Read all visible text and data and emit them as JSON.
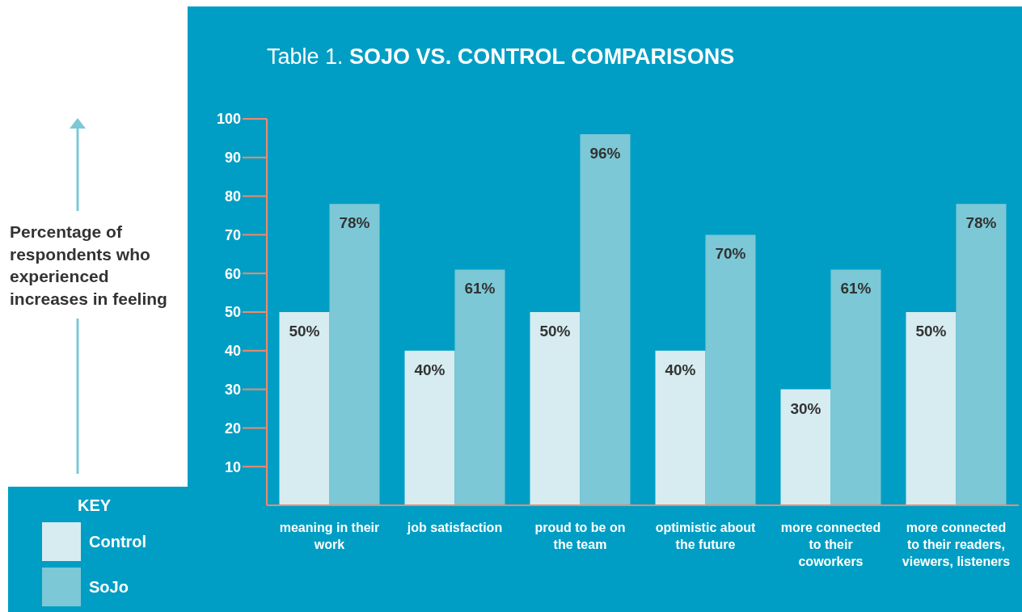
{
  "chart_data": {
    "type": "bar",
    "title": "Table 1. SOJO VS. CONTROL COMPARISONS",
    "annotations": [
      "Percentage of respondents who experienced increases in feeling"
    ],
    "legend_title": "KEY",
    "legend": "bottom left",
    "categories": [
      "meaning in their work",
      "job satisfaction",
      "proud to be on the team",
      "optimistic about the future",
      "more connected to their coworkers",
      "more connected to their readers, viewers, listeners"
    ],
    "series": [
      {
        "name": "Control",
        "color": "#d6ecf0",
        "values": [
          50,
          40,
          50,
          40,
          30,
          50
        ],
        "value_labels": [
          "50%",
          "40%",
          "50%",
          "40%",
          "30%",
          "50%"
        ]
      },
      {
        "name": "SoJo",
        "color": "#7cc8d6",
        "values": [
          78,
          61,
          96,
          70,
          61,
          78
        ],
        "value_labels": [
          "78%",
          "61%",
          "96%",
          "70%",
          "61%",
          "78%"
        ]
      }
    ],
    "ylim": [
      0,
      100
    ],
    "yticks": [
      10,
      20,
      30,
      40,
      50,
      60,
      70,
      80,
      90,
      100
    ]
  }
}
